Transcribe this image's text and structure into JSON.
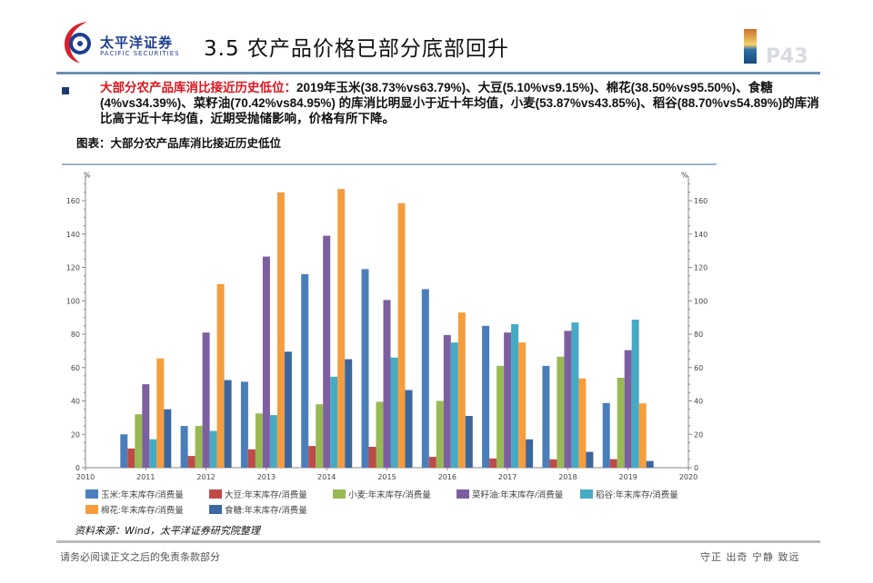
{
  "header": {
    "logo_cn": "太平洋证券",
    "logo_en": "PACIFIC SECURITIES",
    "title": "3.5 农产品价格已部分底部回升",
    "page": "P43"
  },
  "body": {
    "highlight": "大部分农产品库消比接近历史低位：",
    "text": "2019年玉米(38.73%vs63.79%)、大豆(5.10%vs9.15%)、棉花(38.50%vs95.50%)、食糖(4%vs34.39%)、菜籽油(70.42%vs84.95%) 的库消比明显小于近十年均值，小麦(53.87%vs43.85%)、稻谷(88.70%vs54.89%)的库消比高于近十年均值，近期受抛储影响，价格有所下降。"
  },
  "figure": {
    "title": "图表：大部分农产品库消比接近历史低位",
    "source": "资料来源：Wind，太平洋证券研究院整理"
  },
  "chart_data": {
    "type": "bar",
    "ylabel_left": "%",
    "ylabel_right": "%",
    "ylim": [
      0,
      170
    ],
    "yticks": [
      0,
      20,
      40,
      60,
      80,
      100,
      120,
      140,
      160
    ],
    "xlim": [
      2010,
      2020
    ],
    "xticks": [
      "2010",
      "2011",
      "2012",
      "2013",
      "2014",
      "2015",
      "2016",
      "2017",
      "2018",
      "2019",
      "2020"
    ],
    "categories": [
      "2011",
      "2012",
      "2013",
      "2014",
      "2015",
      "2016",
      "2017",
      "2018",
      "2019"
    ],
    "legend_position": "bottom",
    "series": [
      {
        "name": "玉米:年末库存/消费量",
        "color": "#4a7ebb",
        "values": [
          20,
          25,
          51.5,
          116,
          119,
          107,
          85,
          61,
          38.73
        ]
      },
      {
        "name": "大豆:年末库存/消费量",
        "color": "#be4b48",
        "values": [
          11.5,
          7,
          11,
          13,
          12.5,
          6.5,
          5.5,
          5,
          5.1
        ]
      },
      {
        "name": "小麦:年末库存/消费量",
        "color": "#98b954",
        "values": [
          32,
          25,
          32.5,
          38,
          39.5,
          40,
          61,
          66.5,
          53.87
        ]
      },
      {
        "name": "菜籽油:年末库存/消费量",
        "color": "#7d5fa0",
        "values": [
          50,
          81,
          126.5,
          139,
          100.5,
          79.5,
          81,
          82,
          70.42
        ]
      },
      {
        "name": "稻谷:年末库存/消费量",
        "color": "#46aac5",
        "values": [
          17,
          22,
          31.5,
          54.5,
          66,
          75,
          86,
          87,
          88.7
        ]
      },
      {
        "name": "棉花:年末库存/消费量",
        "color": "#f59d3d",
        "values": [
          65.5,
          110,
          165,
          167,
          158.5,
          93,
          75,
          53.5,
          38.5
        ]
      },
      {
        "name": "食糖:年末库存/消费量",
        "color": "#3b679e",
        "values": [
          35,
          52.5,
          69.5,
          65,
          46.5,
          31,
          17,
          9.5,
          4
        ]
      }
    ]
  },
  "footer": {
    "disclaimer": "请务必阅读正文之后的免责条款部分",
    "motto": "守正  出奇  宁静  致远"
  }
}
